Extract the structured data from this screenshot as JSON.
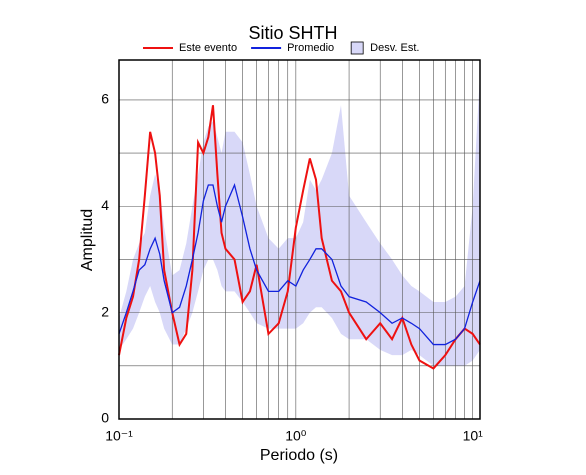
{
  "chart_data": {
    "type": "line",
    "title": "Sitio SHTH",
    "x_label": "Periodo (s)",
    "y_label": "Amplitud",
    "xscale": "log",
    "xlim": [
      0.1,
      11
    ],
    "ylim": [
      0,
      6.75
    ],
    "xticks": [
      {
        "value": 0.1,
        "label": "10⁻¹"
      },
      {
        "value": 1,
        "label": "10⁰"
      },
      {
        "value": 10,
        "label": "10¹"
      }
    ],
    "xminor_ticks": [
      0.2,
      0.3,
      0.4,
      0.5,
      0.6,
      0.7,
      0.8,
      0.9,
      2,
      3,
      4,
      5,
      6,
      7,
      8,
      9
    ],
    "yticks": [
      0,
      2,
      4,
      6
    ],
    "yminor_ticks": [
      1,
      3,
      5
    ],
    "grid": true,
    "legend": "top",
    "x": [
      0.1,
      0.11,
      0.12,
      0.13,
      0.14,
      0.15,
      0.16,
      0.17,
      0.18,
      0.2,
      0.22,
      0.24,
      0.26,
      0.28,
      0.3,
      0.32,
      0.34,
      0.36,
      0.38,
      0.4,
      0.45,
      0.5,
      0.55,
      0.6,
      0.7,
      0.8,
      0.9,
      1.0,
      1.1,
      1.2,
      1.3,
      1.4,
      1.6,
      1.8,
      2,
      2.5,
      3,
      3.5,
      4,
      4.5,
      5,
      6,
      7,
      8,
      9,
      10,
      11
    ],
    "series": [
      {
        "name": "Este evento",
        "color": "#ee1111",
        "values": [
          1.2,
          1.9,
          2.3,
          3.0,
          4.2,
          5.4,
          5.0,
          4.2,
          2.8,
          2.0,
          1.4,
          1.6,
          2.8,
          5.2,
          5.0,
          5.3,
          5.9,
          4.6,
          3.5,
          3.2,
          3.0,
          2.2,
          2.4,
          2.9,
          1.6,
          1.8,
          2.4,
          3.6,
          4.3,
          4.9,
          4.5,
          3.4,
          2.6,
          2.4,
          2.0,
          1.5,
          1.8,
          1.5,
          1.9,
          1.4,
          1.1,
          0.95,
          1.2,
          1.5,
          1.7,
          1.6,
          1.4
        ]
      },
      {
        "name": "Promedio",
        "color": "#1122dd",
        "values": [
          1.6,
          2.0,
          2.4,
          2.8,
          2.9,
          3.2,
          3.4,
          3.1,
          2.6,
          2.0,
          2.1,
          2.5,
          3.0,
          3.5,
          4.1,
          4.4,
          4.4,
          4.0,
          3.7,
          4.0,
          4.4,
          3.8,
          3.2,
          2.8,
          2.4,
          2.4,
          2.6,
          2.5,
          2.8,
          3.0,
          3.2,
          3.2,
          3.0,
          2.5,
          2.3,
          2.2,
          2.0,
          1.8,
          1.9,
          1.8,
          1.7,
          1.4,
          1.4,
          1.5,
          1.7,
          2.2,
          2.6
        ]
      },
      {
        "name": "Desv. Est.",
        "color": "#d8d8f8",
        "lower": [
          1.3,
          1.5,
          1.7,
          2.0,
          2.3,
          2.5,
          2.2,
          2.0,
          1.7,
          1.4,
          1.4,
          1.7,
          2.0,
          2.4,
          2.8,
          3.0,
          3.0,
          2.8,
          2.5,
          2.4,
          2.4,
          2.2,
          2.0,
          1.8,
          1.7,
          1.7,
          1.7,
          1.7,
          1.8,
          2.0,
          2.1,
          2.1,
          1.9,
          1.6,
          1.5,
          1.5,
          1.3,
          1.2,
          1.2,
          1.3,
          1.2,
          1.0,
          1.0,
          1.0,
          1.0,
          1.1,
          1.3
        ],
        "upper": [
          1.9,
          2.4,
          3.0,
          3.3,
          3.5,
          4.2,
          4.6,
          4.3,
          3.6,
          2.7,
          2.8,
          3.3,
          4.0,
          4.6,
          5.2,
          5.5,
          5.6,
          5.3,
          5.0,
          5.4,
          5.4,
          5.2,
          4.6,
          4.0,
          3.4,
          3.2,
          3.4,
          3.4,
          3.7,
          4.5,
          4.3,
          4.5,
          5.0,
          5.9,
          4.2,
          3.7,
          3.3,
          3.0,
          2.7,
          2.5,
          2.4,
          2.2,
          2.2,
          2.3,
          2.5,
          4.0,
          6.5
        ]
      }
    ]
  }
}
